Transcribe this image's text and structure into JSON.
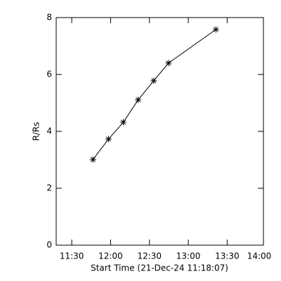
{
  "chart_data": {
    "type": "line",
    "x_label": "Start Time (21-Dec-24 11:18:07)",
    "y_label": "R/Rs",
    "series": [
      {
        "color": "#000000",
        "x": [
          706.4,
          718.4,
          729.8,
          741.3,
          753.3,
          764.7,
          801.3
        ],
        "values": [
          3.01,
          3.73,
          4.32,
          5.11,
          5.78,
          6.4,
          7.58
        ]
      }
    ],
    "xlim": [
      678,
      838
    ],
    "xticks": [
      {
        "value": 690,
        "label": "11:30"
      },
      {
        "value": 720,
        "label": "12:00"
      },
      {
        "value": 750,
        "label": "12:30"
      },
      {
        "value": 780,
        "label": "13:00"
      },
      {
        "value": 810,
        "label": "13:30"
      },
      {
        "value": 840,
        "label": "14:00"
      }
    ],
    "ylim": [
      0,
      8
    ],
    "yticks": [
      0,
      2,
      4,
      6,
      8
    ]
  }
}
